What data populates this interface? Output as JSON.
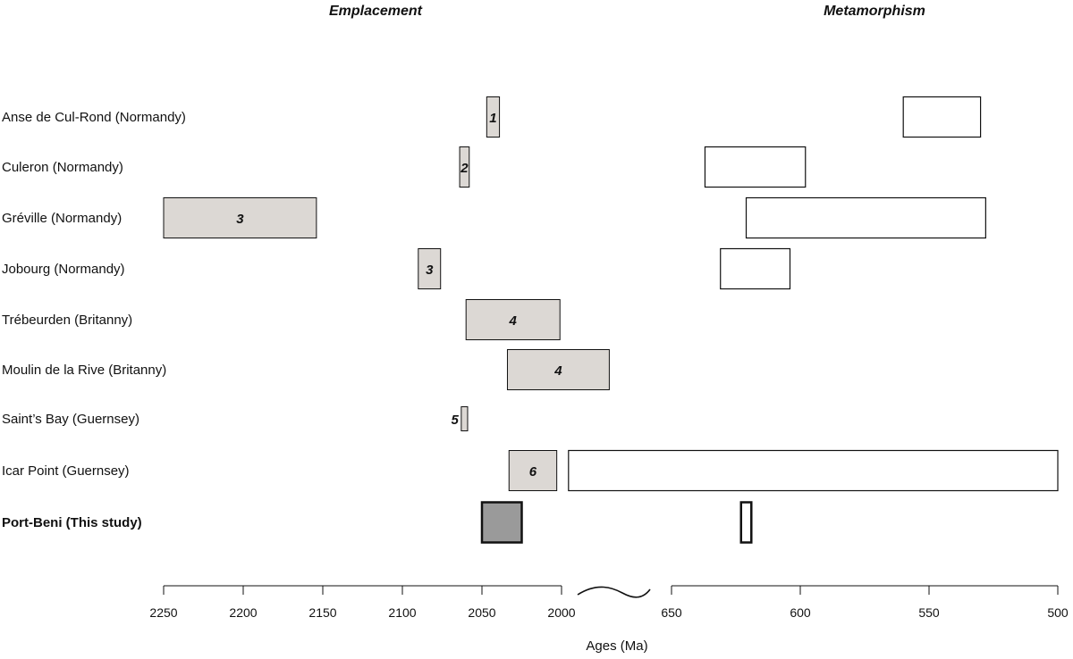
{
  "chart_data": {
    "type": "bar",
    "orientation": "horizontal-range",
    "sections": [
      {
        "key": "emplacement",
        "title": "Emplacement",
        "xlim": [
          2250,
          2000
        ],
        "ticks": [
          2250,
          2200,
          2150,
          2100,
          2050,
          2000
        ]
      },
      {
        "key": "metamorphism",
        "title": "Metamorphism",
        "xlim": [
          650,
          500
        ],
        "ticks": [
          650,
          600,
          550,
          500
        ]
      }
    ],
    "xlabel": "Ages (Ma)",
    "axis_break": true,
    "rows": [
      {
        "label": "Anse de Cul-Rond (Normandy)",
        "bold": false,
        "emplacement": {
          "from": 2047,
          "to": 2039,
          "label": "1"
        },
        "metamorphism": {
          "from": 560,
          "to": 530
        }
      },
      {
        "label": "Culeron (Normandy)",
        "bold": false,
        "emplacement": {
          "from": 2064,
          "to": 2058,
          "label": "2"
        },
        "metamorphism": {
          "from": 637,
          "to": 598
        }
      },
      {
        "label": "Gréville (Normandy)",
        "bold": false,
        "emplacement": {
          "from": 2250,
          "to": 2154,
          "label": "3"
        },
        "metamorphism": {
          "from": 621,
          "to": 528
        }
      },
      {
        "label": "Jobourg (Normandy)",
        "bold": false,
        "emplacement": {
          "from": 2090,
          "to": 2076,
          "label": "3"
        },
        "metamorphism": {
          "from": 631,
          "to": 604
        }
      },
      {
        "label": "Trébeurden (Britanny)",
        "bold": false,
        "emplacement": {
          "from": 2060,
          "to": 2001,
          "label": "4"
        },
        "metamorphism": null
      },
      {
        "label": "Moulin de la Rive (Britanny)",
        "bold": false,
        "emplacement": {
          "from": 2034,
          "to": 1970,
          "label": "4"
        },
        "metamorphism": null
      },
      {
        "label": "Saint’s Bay (Guernsey)",
        "bold": false,
        "emplacement": {
          "from": 2063,
          "to": 2059,
          "label": "5"
        },
        "metamorphism": null
      },
      {
        "label": "Icar Point (Guernsey)",
        "bold": false,
        "emplacement": {
          "from": 2033,
          "to": 2003,
          "label": "6"
        },
        "metamorphism": {
          "from": 690,
          "to": 500
        }
      },
      {
        "label": "Port-Beni (This study)",
        "bold": true,
        "emplacement": {
          "from": 2050,
          "to": 2025,
          "label": ""
        },
        "metamorphism": {
          "from": 623,
          "to": 619
        }
      }
    ],
    "colors": {
      "emplacement_fill": "#dcd8d4",
      "highlight_fill": "#9a9a9a",
      "metamorphism_fill": "#ffffff",
      "stroke": "#111111"
    }
  }
}
